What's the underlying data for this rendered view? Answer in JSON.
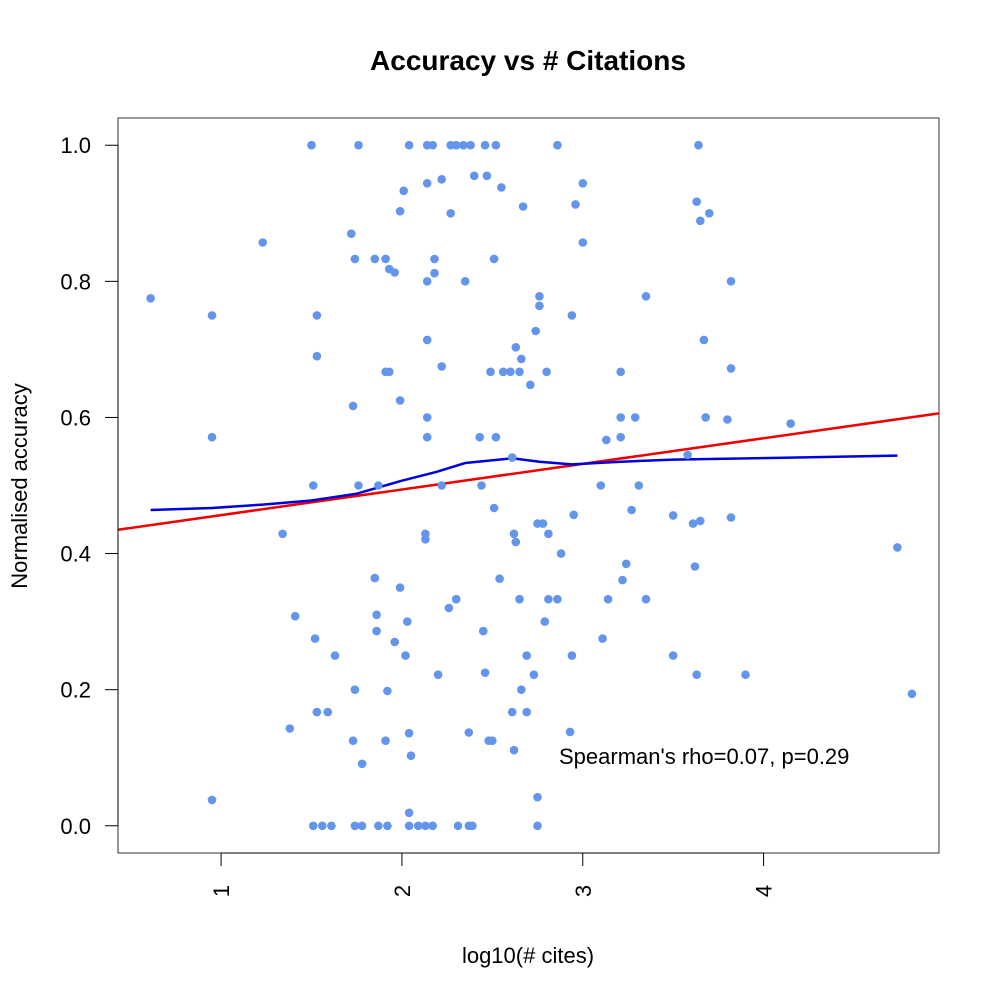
{
  "chart_data": {
    "type": "scatter",
    "title": "Accuracy vs # Citations",
    "xlabel": "log10(# cites)",
    "ylabel": "Normalised accuracy",
    "xlim": [
      0.43,
      4.97
    ],
    "ylim": [
      -0.04,
      1.04
    ],
    "x_ticks": [
      1,
      2,
      3,
      4
    ],
    "x_tick_labels": [
      "1",
      "2",
      "3",
      "4"
    ],
    "y_ticks": [
      0.0,
      0.2,
      0.4,
      0.6,
      0.8,
      1.0
    ],
    "y_tick_labels": [
      "0.0",
      "0.2",
      "0.4",
      "0.6",
      "0.8",
      "1.0"
    ],
    "grid": false,
    "annotation": "Spearman's rho=0.07, p=0.29",
    "colors": {
      "points": "#6495ED",
      "fit_line": "#EE0000",
      "smooth_line": "#0000DD"
    },
    "points": [
      [
        0.61,
        0.775
      ],
      [
        0.95,
        0.75
      ],
      [
        0.95,
        0.571
      ],
      [
        0.95,
        0.038
      ],
      [
        1.23,
        0.857
      ],
      [
        1.34,
        0.429
      ],
      [
        1.38,
        0.143
      ],
      [
        1.41,
        0.308
      ],
      [
        1.5,
        1.0
      ],
      [
        1.51,
        0.5
      ],
      [
        1.51,
        0.0
      ],
      [
        1.52,
        0.275
      ],
      [
        1.53,
        0.75
      ],
      [
        1.53,
        0.69
      ],
      [
        1.53,
        0.167
      ],
      [
        1.56,
        0.0
      ],
      [
        1.59,
        0.167
      ],
      [
        1.61,
        0.0
      ],
      [
        1.63,
        0.25
      ],
      [
        1.72,
        0.87
      ],
      [
        1.73,
        0.617
      ],
      [
        1.73,
        0.125
      ],
      [
        1.74,
        0.2
      ],
      [
        1.74,
        0.833
      ],
      [
        1.74,
        0.0
      ],
      [
        1.76,
        1.0
      ],
      [
        1.76,
        0.5
      ],
      [
        1.78,
        0.0
      ],
      [
        1.78,
        0.091
      ],
      [
        1.85,
        0.833
      ],
      [
        1.85,
        0.364
      ],
      [
        1.86,
        0.31
      ],
      [
        1.86,
        0.286
      ],
      [
        1.87,
        0.5
      ],
      [
        1.87,
        0.0
      ],
      [
        1.91,
        0.833
      ],
      [
        1.91,
        0.667
      ],
      [
        1.91,
        0.125
      ],
      [
        1.92,
        0.0
      ],
      [
        1.92,
        0.198
      ],
      [
        1.93,
        0.818
      ],
      [
        1.93,
        0.667
      ],
      [
        1.96,
        0.813
      ],
      [
        1.96,
        0.27
      ],
      [
        1.99,
        0.903
      ],
      [
        1.99,
        0.625
      ],
      [
        1.99,
        0.35
      ],
      [
        2.01,
        0.933
      ],
      [
        2.02,
        0.25
      ],
      [
        2.03,
        0.3
      ],
      [
        2.04,
        1.0
      ],
      [
        2.04,
        0.136
      ],
      [
        2.04,
        0.019
      ],
      [
        2.04,
        0.0
      ],
      [
        2.05,
        0.103
      ],
      [
        2.09,
        0.0
      ],
      [
        2.13,
        0.0
      ],
      [
        2.13,
        0.429
      ],
      [
        2.13,
        0.421
      ],
      [
        2.14,
        0.8
      ],
      [
        2.14,
        0.944
      ],
      [
        2.14,
        0.714
      ],
      [
        2.14,
        0.6
      ],
      [
        2.14,
        0.571
      ],
      [
        2.14,
        1.0
      ],
      [
        2.17,
        1.0
      ],
      [
        2.17,
        0.0
      ],
      [
        2.18,
        0.833
      ],
      [
        2.18,
        0.812
      ],
      [
        2.2,
        0.222
      ],
      [
        2.22,
        0.675
      ],
      [
        2.22,
        0.5
      ],
      [
        2.22,
        0.95
      ],
      [
        2.26,
        0.32
      ],
      [
        2.27,
        0.9
      ],
      [
        2.27,
        1.0
      ],
      [
        2.3,
        0.333
      ],
      [
        2.3,
        1.0
      ],
      [
        2.31,
        0.0
      ],
      [
        2.34,
        1.0
      ],
      [
        2.35,
        0.8
      ],
      [
        2.37,
        0.137
      ],
      [
        2.37,
        0.0
      ],
      [
        2.38,
        1.0
      ],
      [
        2.39,
        0.0
      ],
      [
        2.4,
        0.955
      ],
      [
        2.43,
        0.571
      ],
      [
        2.44,
        0.5
      ],
      [
        2.45,
        0.286
      ],
      [
        2.46,
        1.0
      ],
      [
        2.46,
        0.225
      ],
      [
        2.47,
        0.955
      ],
      [
        2.48,
        0.125
      ],
      [
        2.49,
        0.667
      ],
      [
        2.5,
        0.125
      ],
      [
        2.51,
        0.833
      ],
      [
        2.51,
        0.467
      ],
      [
        2.52,
        0.571
      ],
      [
        2.52,
        1.0
      ],
      [
        2.54,
        0.363
      ],
      [
        2.55,
        0.938
      ],
      [
        2.56,
        0.667
      ],
      [
        2.6,
        0.667
      ],
      [
        2.61,
        0.541
      ],
      [
        2.61,
        0.167
      ],
      [
        2.62,
        0.429
      ],
      [
        2.62,
        0.111
      ],
      [
        2.63,
        0.703
      ],
      [
        2.63,
        0.417
      ],
      [
        2.65,
        0.333
      ],
      [
        2.65,
        0.667
      ],
      [
        2.66,
        0.2
      ],
      [
        2.66,
        0.686
      ],
      [
        2.67,
        0.91
      ],
      [
        2.69,
        0.25
      ],
      [
        2.69,
        0.167
      ],
      [
        2.71,
        0.648
      ],
      [
        2.73,
        0.222
      ],
      [
        2.74,
        0.727
      ],
      [
        2.75,
        0.444
      ],
      [
        2.75,
        0.0
      ],
      [
        2.75,
        0.042
      ],
      [
        2.76,
        0.778
      ],
      [
        2.76,
        0.764
      ],
      [
        2.78,
        0.444
      ],
      [
        2.79,
        0.3
      ],
      [
        2.8,
        0.667
      ],
      [
        2.81,
        0.429
      ],
      [
        2.81,
        0.333
      ],
      [
        2.86,
        1.0
      ],
      [
        2.86,
        0.333
      ],
      [
        2.88,
        0.4
      ],
      [
        2.93,
        0.138
      ],
      [
        2.94,
        0.75
      ],
      [
        2.94,
        0.25
      ],
      [
        2.95,
        0.457
      ],
      [
        2.96,
        0.913
      ],
      [
        3.0,
        0.944
      ],
      [
        3.0,
        0.857
      ],
      [
        3.1,
        0.5
      ],
      [
        3.11,
        0.275
      ],
      [
        3.13,
        0.567
      ],
      [
        3.14,
        0.333
      ],
      [
        3.21,
        0.667
      ],
      [
        3.21,
        0.6
      ],
      [
        3.21,
        0.571
      ],
      [
        3.22,
        0.361
      ],
      [
        3.24,
        0.385
      ],
      [
        3.27,
        0.464
      ],
      [
        3.29,
        0.6
      ],
      [
        3.31,
        0.5
      ],
      [
        3.35,
        0.778
      ],
      [
        3.35,
        0.333
      ],
      [
        3.5,
        0.456
      ],
      [
        3.5,
        0.25
      ],
      [
        3.58,
        0.545
      ],
      [
        3.61,
        0.444
      ],
      [
        3.62,
        0.381
      ],
      [
        3.63,
        0.917
      ],
      [
        3.63,
        0.222
      ],
      [
        3.64,
        1.0
      ],
      [
        3.65,
        0.889
      ],
      [
        3.65,
        0.448
      ],
      [
        3.67,
        0.714
      ],
      [
        3.68,
        0.6
      ],
      [
        3.7,
        0.9
      ],
      [
        3.8,
        0.597
      ],
      [
        3.82,
        0.8
      ],
      [
        3.82,
        0.672
      ],
      [
        3.82,
        0.453
      ],
      [
        3.9,
        0.222
      ],
      [
        4.15,
        0.591
      ],
      [
        4.74,
        0.409
      ],
      [
        4.82,
        0.194
      ]
    ],
    "fit_line": {
      "x": [
        0.43,
        4.97
      ],
      "y": [
        0.435,
        0.606
      ]
    },
    "smooth_line": {
      "x": [
        0.61,
        0.95,
        1.23,
        1.5,
        1.75,
        2.0,
        2.19,
        2.35,
        2.61,
        2.76,
        2.94,
        3.21,
        3.5,
        3.7,
        4.15,
        4.74
      ],
      "y": [
        0.464,
        0.467,
        0.472,
        0.478,
        0.488,
        0.507,
        0.52,
        0.533,
        0.54,
        0.535,
        0.531,
        0.535,
        0.538,
        0.539,
        0.541,
        0.544
      ]
    }
  }
}
